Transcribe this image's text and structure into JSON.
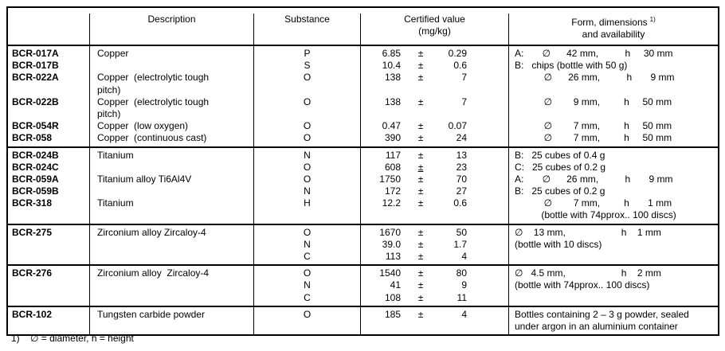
{
  "colors": {
    "border": "#000000",
    "text": "#000000",
    "background": "#ffffff"
  },
  "table": {
    "header": {
      "id": "",
      "description": "Description",
      "substance": "Substance",
      "certified_line1": "Certified value",
      "certified_line2": "(mg/kg)",
      "form_line1": "Form, dimensions",
      "form_sup": "1)",
      "form_line2": "and availability"
    },
    "groups": [
      {
        "lines": [
          {
            "id": "BCR-017A",
            "desc": "Copper",
            "sub": "P",
            "val": "6.85",
            "pm": "±",
            "unc": "0.29",
            "form": "A:       ∅      42 mm,          h     30 mm"
          },
          {
            "id": "BCR-017B",
            "desc": "",
            "sub": "S",
            "val": "10.4",
            "pm": "±",
            "unc": "0.6",
            "form": "B:   chips (bottle with 50 g)"
          },
          {
            "id": "BCR-022A",
            "desc": "Copper  (electrolytic tough",
            "sub": "O",
            "val": "138",
            "pm": "±",
            "unc": "7",
            "form": "           ∅      26 mm,          h       9 mm"
          },
          {
            "id": "",
            "desc": "pitch)",
            "sub": "",
            "val": "",
            "pm": "",
            "unc": "",
            "form": ""
          },
          {
            "id": "BCR-022B",
            "desc": "Copper  (electrolytic tough",
            "sub": "O",
            "val": "138",
            "pm": "±",
            "unc": "7",
            "form": "           ∅        9 mm,         h     50 mm"
          },
          {
            "id": "",
            "desc": "pitch)",
            "sub": "",
            "val": "",
            "pm": "",
            "unc": "",
            "form": ""
          },
          {
            "id": "BCR-054R",
            "desc": "Copper  (low oxygen)",
            "sub": "O",
            "val": "0.47",
            "pm": "±",
            "unc": "0.07",
            "form": "           ∅        7 mm,         h     50 mm"
          },
          {
            "id": "BCR-058",
            "desc": "Copper  (continuous cast)",
            "sub": "O",
            "val": "390",
            "pm": "±",
            "unc": "24",
            "form": "           ∅        7 mm,         h     50 mm"
          }
        ]
      },
      {
        "lines": [
          {
            "id": "BCR-024B",
            "desc": "Titanium",
            "sub": "N",
            "val": "117",
            "pm": "±",
            "unc": "13",
            "form": "B:   25 cubes of 0.4 g"
          },
          {
            "id": "BCR-024C",
            "desc": "",
            "sub": "O",
            "val": "608",
            "pm": "±",
            "pm_underline": true,
            "unc": "23",
            "form": "C:   25 cubes of 0.2 g"
          },
          {
            "id": "BCR-059A",
            "desc": "Titanium alloy Ti6Al4V",
            "sub": "O",
            "val": "1750",
            "pm": "±",
            "unc": "70",
            "form": "A:       ∅      26 mm,          h       9 mm"
          },
          {
            "id": "BCR-059B",
            "desc": "",
            "sub": "N",
            "val": "172",
            "pm": "±",
            "unc": "27",
            "form": "B:   25 cubes of 0.2 g"
          },
          {
            "id": "BCR-318",
            "desc": "Titanium",
            "sub": "H",
            "val": "12.2",
            "pm": "±",
            "unc": "0.6",
            "form": "           ∅        7 mm,         h       1 mm"
          },
          {
            "id": "",
            "desc": "",
            "sub": "",
            "val": "",
            "pm": "",
            "unc": "",
            "form": "          (bottle with 74pprox.. 100 discs)"
          }
        ]
      },
      {
        "lines": [
          {
            "id": "BCR-275",
            "desc": "Zirconium alloy Zircaloy-4",
            "sub": "O",
            "val": "1670",
            "pm": "±",
            "unc": "50",
            "form": "∅    13 mm,                     h    1 mm"
          },
          {
            "id": "",
            "desc": "",
            "sub": "N",
            "val": "39.0",
            "pm": "±",
            "unc": "1.7",
            "form": "(bottle with 10 discs)"
          },
          {
            "id": "",
            "desc": "",
            "sub": "C",
            "val": "113",
            "pm": "±",
            "unc": "4",
            "form": ""
          }
        ]
      },
      {
        "lines": [
          {
            "id": "BCR-276",
            "desc": "Zirconium alloy  Zircaloy-4",
            "sub": "O",
            "val": "1540",
            "pm": "±",
            "unc": "80",
            "form": "∅   4.5 mm,                     h    2 mm"
          },
          {
            "id": "",
            "desc": "",
            "sub": "N",
            "val": "41",
            "pm": "±",
            "unc": "9",
            "form": "(bottle with 74pprox.. 100 discs)"
          },
          {
            "id": "",
            "desc": "",
            "sub": "C",
            "val": "108",
            "pm": "±",
            "unc": "11",
            "form": ""
          }
        ]
      },
      {
        "lines": [
          {
            "id": "BCR-102",
            "desc": "Tungsten carbide powder",
            "sub": "O",
            "val": "185",
            "pm": "±",
            "unc": "4",
            "form": "Bottles containing 2 – 3 g powder, sealed"
          },
          {
            "id": "",
            "desc": "",
            "sub": "",
            "val": "",
            "pm": "",
            "unc": "",
            "form": "under argon in an aluminium container"
          }
        ]
      }
    ]
  },
  "footnote": {
    "marker": "1)",
    "text": "∅ = diameter, h = height"
  }
}
